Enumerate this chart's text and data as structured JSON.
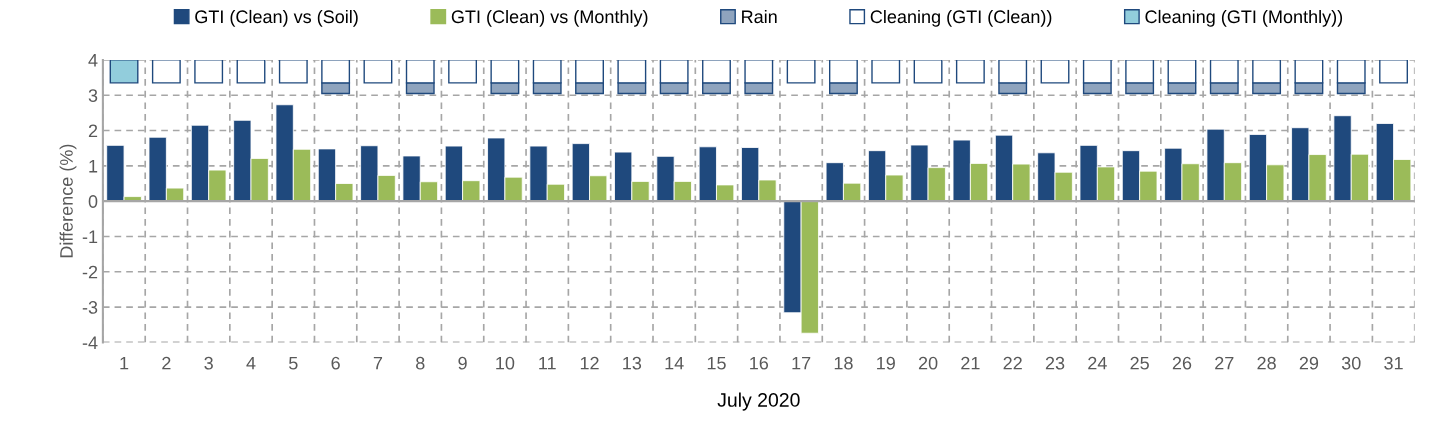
{
  "chart_data": {
    "type": "bar",
    "categories": [
      "1",
      "2",
      "3",
      "4",
      "5",
      "6",
      "7",
      "8",
      "9",
      "10",
      "11",
      "12",
      "13",
      "14",
      "15",
      "16",
      "17",
      "18",
      "19",
      "20",
      "21",
      "22",
      "23",
      "24",
      "25",
      "26",
      "27",
      "28",
      "29",
      "30",
      "31"
    ],
    "xlabel": "July 2020",
    "ylabel": "Difference (%)",
    "ylim": [
      -4,
      4
    ],
    "yticks": [
      -4,
      -3,
      -2,
      -1,
      0,
      1,
      2,
      3,
      4
    ],
    "grid": true,
    "legend": "top",
    "series": [
      {
        "name": "GTI (Clean) vs (Soil)",
        "color": "#1f497d",
        "values": [
          1.58,
          1.81,
          2.15,
          2.29,
          2.73,
          1.48,
          1.57,
          1.28,
          1.56,
          1.79,
          1.56,
          1.63,
          1.39,
          1.27,
          1.54,
          1.52,
          -3.16,
          1.09,
          1.43,
          1.59,
          1.73,
          1.87,
          1.37,
          1.58,
          1.43,
          1.5,
          2.04,
          1.89,
          2.08,
          2.42,
          2.2
        ]
      },
      {
        "name": "GTI (Clean) vs (Monthly)",
        "color": "#9bbb59",
        "values": [
          0.13,
          0.37,
          0.88,
          1.21,
          1.47,
          0.5,
          0.73,
          0.55,
          0.58,
          0.68,
          0.48,
          0.72,
          0.56,
          0.56,
          0.46,
          0.6,
          -3.74,
          0.51,
          0.74,
          0.95,
          1.07,
          1.05,
          0.82,
          0.97,
          0.85,
          1.06,
          1.09,
          1.03,
          1.32,
          1.33,
          1.18
        ]
      },
      {
        "name": "Rain",
        "color": "#8fa4be",
        "base": [
          null,
          null,
          null,
          null,
          null,
          3.05,
          null,
          3.05,
          null,
          3.05,
          3.05,
          3.05,
          3.05,
          3.05,
          3.05,
          3.05,
          null,
          3.05,
          null,
          null,
          null,
          3.05,
          null,
          3.05,
          3.05,
          3.05,
          3.05,
          3.05,
          3.05,
          3.05,
          null
        ],
        "values": [
          null,
          null,
          null,
          null,
          null,
          0.3,
          null,
          0.3,
          null,
          0.3,
          0.3,
          0.3,
          0.3,
          0.3,
          0.3,
          0.3,
          null,
          0.3,
          null,
          null,
          null,
          0.3,
          null,
          0.3,
          0.3,
          0.3,
          0.3,
          0.3,
          0.3,
          0.3,
          null
        ]
      },
      {
        "name": "Cleaning (GTI (Clean))",
        "color": "#ffffff",
        "base": [
          null,
          3.35,
          3.35,
          3.35,
          3.35,
          3.35,
          3.35,
          3.35,
          3.35,
          3.35,
          3.35,
          3.35,
          3.35,
          3.35,
          3.35,
          3.35,
          3.35,
          3.35,
          3.35,
          3.35,
          3.35,
          3.35,
          3.35,
          3.35,
          3.35,
          3.35,
          3.35,
          3.35,
          3.35,
          3.35,
          3.35
        ],
        "values": [
          null,
          0.65,
          0.65,
          0.65,
          0.65,
          0.65,
          0.65,
          0.65,
          0.65,
          0.65,
          0.65,
          0.65,
          0.65,
          0.65,
          0.65,
          0.65,
          0.65,
          0.65,
          0.65,
          0.65,
          0.65,
          0.65,
          0.65,
          0.65,
          0.65,
          0.65,
          0.65,
          0.65,
          0.65,
          0.65,
          0.65
        ]
      },
      {
        "name": "Cleaning (GTI (Monthly))",
        "color": "#92cddc",
        "base": [
          3.35,
          null,
          null,
          null,
          null,
          null,
          null,
          null,
          null,
          null,
          null,
          null,
          null,
          null,
          null,
          null,
          null,
          null,
          null,
          null,
          null,
          null,
          null,
          null,
          null,
          null,
          null,
          null,
          null,
          null,
          null
        ],
        "values": [
          0.65,
          null,
          null,
          null,
          null,
          null,
          null,
          null,
          null,
          null,
          null,
          null,
          null,
          null,
          null,
          null,
          null,
          null,
          null,
          null,
          null,
          null,
          null,
          null,
          null,
          null,
          null,
          null,
          null,
          null,
          null
        ]
      }
    ]
  }
}
